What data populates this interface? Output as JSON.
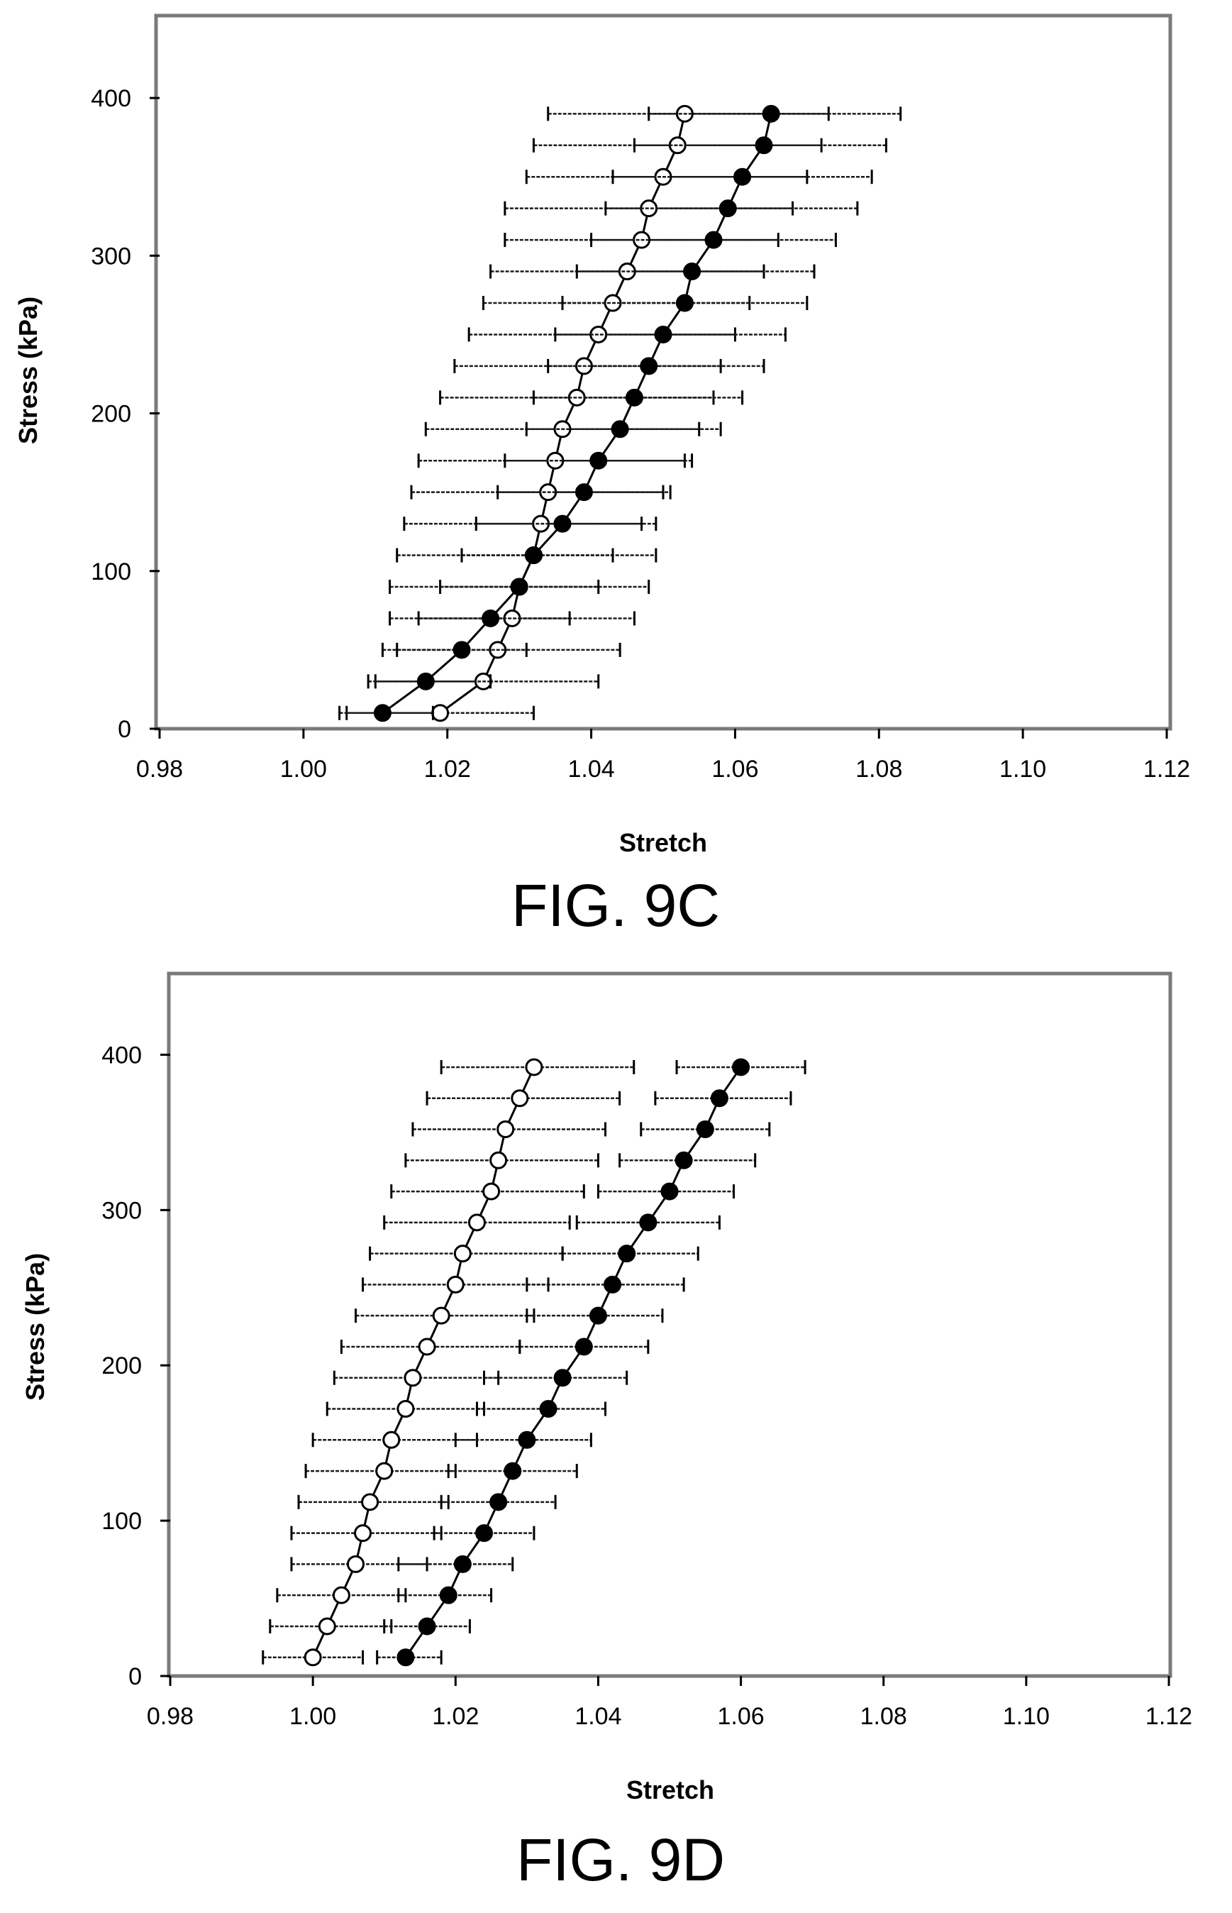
{
  "chart_data": [
    {
      "type": "scatter",
      "caption": "FIG. 9C",
      "xlabel": "Stretch",
      "ylabel": "Stress (kPa)",
      "xlim": [
        0.98,
        1.12
      ],
      "ylim": [
        0,
        450
      ],
      "xticks": [
        0.98,
        1.0,
        1.02,
        1.04,
        1.06,
        1.08,
        1.1,
        1.12
      ],
      "xtick_labels": [
        "0.98",
        "1.00",
        "1.02",
        "1.04",
        "1.06",
        "1.08",
        "1.10",
        "1.12"
      ],
      "yticks": [
        0,
        100,
        200,
        300,
        400
      ],
      "ytick_labels": [
        "0",
        "100",
        "200",
        "300",
        "400"
      ],
      "grid": false,
      "series": [
        {
          "marker": "open-circle",
          "line_color": "#000000",
          "stress": [
            10,
            30,
            50,
            70,
            90,
            110,
            130,
            150,
            170,
            190,
            210,
            230,
            250,
            270,
            290,
            310,
            330,
            350,
            370,
            390
          ],
          "stretch": [
            1.019,
            1.025,
            1.027,
            1.029,
            1.03,
            1.032,
            1.033,
            1.034,
            1.035,
            1.036,
            1.038,
            1.039,
            1.041,
            1.043,
            1.045,
            1.047,
            1.048,
            1.05,
            1.052,
            1.053
          ],
          "err_low": [
            1.006,
            1.01,
            1.011,
            1.012,
            1.012,
            1.013,
            1.014,
            1.015,
            1.016,
            1.017,
            1.019,
            1.021,
            1.023,
            1.025,
            1.026,
            1.028,
            1.028,
            1.031,
            1.032,
            1.034
          ],
          "err_high": [
            1.032,
            1.041,
            1.044,
            1.046,
            1.048,
            1.049,
            1.049,
            1.051,
            1.053,
            1.055,
            1.057,
            1.058,
            1.06,
            1.062,
            1.064,
            1.066,
            1.068,
            1.07,
            1.072,
            1.073
          ]
        },
        {
          "marker": "filled-circle",
          "line_color": "#000000",
          "stress": [
            10,
            30,
            50,
            70,
            90,
            110,
            130,
            150,
            170,
            190,
            210,
            230,
            250,
            270,
            290,
            310,
            330,
            350,
            370,
            390
          ],
          "stretch": [
            1.011,
            1.017,
            1.022,
            1.026,
            1.03,
            1.032,
            1.036,
            1.039,
            1.041,
            1.044,
            1.046,
            1.048,
            1.05,
            1.053,
            1.054,
            1.057,
            1.059,
            1.061,
            1.064,
            1.065
          ],
          "err_low": [
            1.005,
            1.009,
            1.013,
            1.016,
            1.019,
            1.022,
            1.024,
            1.027,
            1.028,
            1.031,
            1.032,
            1.034,
            1.035,
            1.036,
            1.038,
            1.04,
            1.042,
            1.043,
            1.046,
            1.048
          ],
          "err_high": [
            1.018,
            1.026,
            1.031,
            1.037,
            1.041,
            1.043,
            1.047,
            1.05,
            1.054,
            1.058,
            1.061,
            1.064,
            1.067,
            1.07,
            1.071,
            1.074,
            1.077,
            1.079,
            1.081,
            1.083
          ]
        }
      ]
    },
    {
      "type": "scatter",
      "caption": "FIG. 9D",
      "xlabel": "Stretch",
      "ylabel": "Stress (kPa)",
      "xlim": [
        0.98,
        1.12
      ],
      "ylim": [
        0,
        450
      ],
      "xticks": [
        0.98,
        1.0,
        1.02,
        1.04,
        1.06,
        1.08,
        1.1,
        1.12
      ],
      "xtick_labels": [
        "0.98",
        "1.00",
        "1.02",
        "1.04",
        "1.06",
        "1.08",
        "1.10",
        "1.12"
      ],
      "yticks": [
        0,
        100,
        200,
        300,
        400
      ],
      "ytick_labels": [
        "0",
        "100",
        "200",
        "300",
        "400"
      ],
      "grid": false,
      "series": [
        {
          "marker": "open-circle",
          "line_color": "#000000",
          "stress": [
            12,
            32,
            52,
            72,
            92,
            112,
            132,
            152,
            172,
            192,
            212,
            232,
            252,
            272,
            292,
            312,
            332,
            352,
            372,
            392
          ],
          "stretch": [
            1.0,
            1.002,
            1.004,
            1.006,
            1.007,
            1.008,
            1.01,
            1.011,
            1.013,
            1.014,
            1.016,
            1.018,
            1.02,
            1.021,
            1.023,
            1.025,
            1.026,
            1.027,
            1.029,
            1.031
          ],
          "err_low": [
            0.993,
            0.994,
            0.995,
            0.997,
            0.997,
            0.998,
            0.999,
            1.0,
            1.002,
            1.003,
            1.004,
            1.006,
            1.007,
            1.008,
            1.01,
            1.011,
            1.013,
            1.014,
            1.016,
            1.018
          ],
          "err_high": [
            1.007,
            1.011,
            1.013,
            1.016,
            1.018,
            1.019,
            1.02,
            1.023,
            1.024,
            1.026,
            1.029,
            1.031,
            1.033,
            1.035,
            1.036,
            1.038,
            1.04,
            1.041,
            1.043,
            1.045
          ]
        },
        {
          "marker": "filled-circle",
          "line_color": "#000000",
          "stress": [
            12,
            32,
            52,
            72,
            92,
            112,
            132,
            152,
            172,
            192,
            212,
            232,
            252,
            272,
            292,
            312,
            332,
            352,
            372,
            392
          ],
          "stretch": [
            1.013,
            1.016,
            1.019,
            1.021,
            1.024,
            1.026,
            1.028,
            1.03,
            1.033,
            1.035,
            1.038,
            1.04,
            1.042,
            1.044,
            1.047,
            1.05,
            1.052,
            1.055,
            1.057,
            1.06
          ],
          "err_low": [
            1.009,
            1.01,
            1.012,
            1.012,
            1.017,
            1.018,
            1.019,
            1.02,
            1.023,
            1.024,
            1.029,
            1.03,
            1.03,
            1.035,
            1.037,
            1.04,
            1.043,
            1.046,
            1.048,
            1.051
          ],
          "err_high": [
            1.018,
            1.022,
            1.025,
            1.028,
            1.031,
            1.034,
            1.037,
            1.039,
            1.041,
            1.044,
            1.047,
            1.049,
            1.052,
            1.054,
            1.057,
            1.059,
            1.062,
            1.064,
            1.067,
            1.069
          ]
        }
      ]
    }
  ]
}
